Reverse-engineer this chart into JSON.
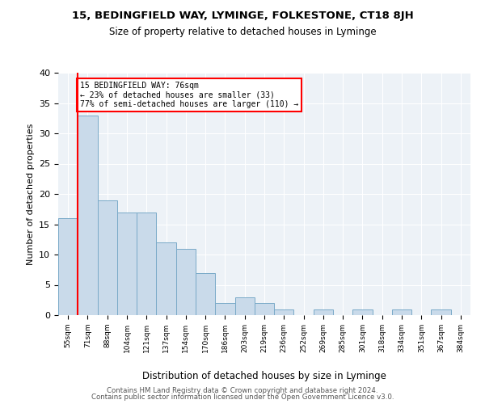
{
  "title1": "15, BEDINGFIELD WAY, LYMINGE, FOLKESTONE, CT18 8JH",
  "title2": "Size of property relative to detached houses in Lyminge",
  "xlabel": "Distribution of detached houses by size in Lyminge",
  "ylabel": "Number of detached properties",
  "bins": [
    "55sqm",
    "71sqm",
    "88sqm",
    "104sqm",
    "121sqm",
    "137sqm",
    "154sqm",
    "170sqm",
    "186sqm",
    "203sqm",
    "219sqm",
    "236sqm",
    "252sqm",
    "269sqm",
    "285sqm",
    "301sqm",
    "318sqm",
    "334sqm",
    "351sqm",
    "367sqm",
    "384sqm"
  ],
  "values": [
    16,
    33,
    19,
    17,
    17,
    12,
    11,
    7,
    2,
    3,
    2,
    1,
    0,
    1,
    0,
    1,
    0,
    1,
    0,
    1,
    0
  ],
  "bar_color": "#c9daea",
  "bar_edge_color": "#7aaac8",
  "vline_color": "red",
  "annotation_text": "15 BEDINGFIELD WAY: 76sqm\n← 23% of detached houses are smaller (33)\n77% of semi-detached houses are larger (110) →",
  "annotation_box_color": "white",
  "annotation_box_edge_color": "red",
  "footer1": "Contains HM Land Registry data © Crown copyright and database right 2024.",
  "footer2": "Contains public sector information licensed under the Open Government Licence v3.0.",
  "background_color": "#edf2f7",
  "ylim": [
    0,
    40
  ],
  "yticks": [
    0,
    5,
    10,
    15,
    20,
    25,
    30,
    35,
    40
  ]
}
